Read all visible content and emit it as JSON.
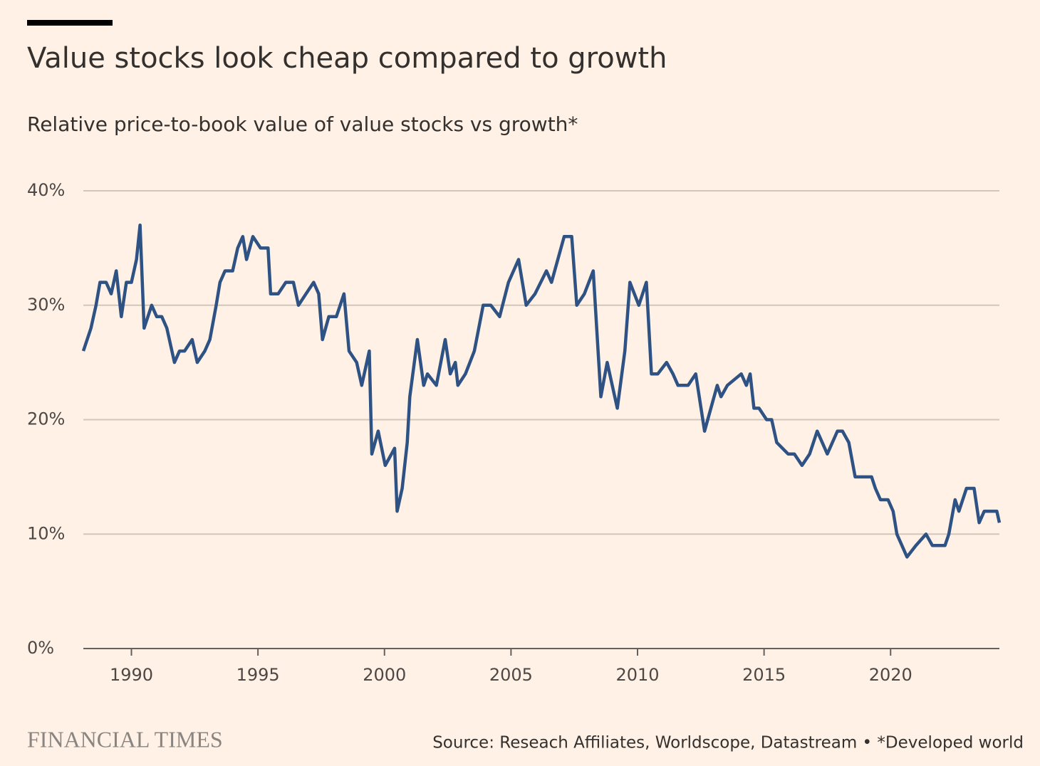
{
  "chart_data": {
    "type": "line",
    "title": "Value stocks look cheap compared to growth",
    "subtitle": "Relative price-to-book value of value stocks vs growth*",
    "source": "Source: Reseach Affiliates, Worldscope, Datastream • *Developed world",
    "logo": "FINANCIAL TIMES",
    "color": "#2e5283",
    "x": [
      1988.1,
      1988.4,
      1988.6,
      1988.76,
      1989.0,
      1989.2,
      1989.4,
      1989.6,
      1989.8,
      1990.0,
      1990.2,
      1990.34,
      1990.5,
      1990.8,
      1991.0,
      1991.2,
      1991.4,
      1991.7,
      1991.9,
      1992.1,
      1992.4,
      1992.6,
      1992.9,
      1993.1,
      1993.35,
      1993.5,
      1993.7,
      1994.0,
      1994.2,
      1994.4,
      1994.55,
      1994.8,
      1995.1,
      1995.4,
      1995.5,
      1995.8,
      1996.1,
      1996.4,
      1996.6,
      1996.9,
      1997.2,
      1997.4,
      1997.55,
      1997.8,
      1998.1,
      1998.4,
      1998.6,
      1998.9,
      1999.1,
      1999.4,
      1999.5,
      1999.75,
      2000.03,
      2000.4,
      2000.5,
      2000.7,
      2000.9,
      2001.0,
      2001.3,
      2001.55,
      2001.7,
      2002.05,
      2002.4,
      2002.6,
      2002.8,
      2002.9,
      2003.2,
      2003.55,
      2003.9,
      2004.2,
      2004.55,
      2004.9,
      2005.3,
      2005.6,
      2005.95,
      2006.4,
      2006.6,
      2006.85,
      2007.1,
      2007.4,
      2007.6,
      2007.9,
      2008.25,
      2008.55,
      2008.8,
      2009.0,
      2009.2,
      2009.5,
      2009.7,
      2010.05,
      2010.35,
      2010.55,
      2010.8,
      2011.15,
      2011.4,
      2011.6,
      2012.0,
      2012.3,
      2012.65,
      2012.9,
      2013.15,
      2013.3,
      2013.55,
      2014.1,
      2014.3,
      2014.45,
      2014.6,
      2014.8,
      2015.1,
      2015.3,
      2015.5,
      2015.95,
      2016.2,
      2016.5,
      2016.8,
      2017.1,
      2017.3,
      2017.5,
      2017.9,
      2018.1,
      2018.35,
      2018.6,
      2018.9,
      2019.25,
      2019.4,
      2019.6,
      2019.9,
      2020.1,
      2020.25,
      2020.45,
      2020.65,
      2021.0,
      2021.4,
      2021.65,
      2022.15,
      2022.3,
      2022.55,
      2022.7,
      2023.0,
      2023.3,
      2023.5,
      2023.7,
      2024.0,
      2024.2,
      2024.3
    ],
    "values": [
      26,
      28,
      30,
      32,
      32,
      31,
      33,
      29,
      32,
      32,
      34,
      37,
      28,
      30,
      29,
      29,
      28,
      25,
      26,
      26,
      27,
      25,
      26,
      27,
      30,
      32,
      33,
      33,
      35,
      36,
      34,
      36,
      35,
      35,
      31,
      31,
      32,
      32,
      30,
      31,
      32,
      31,
      27,
      29,
      29,
      31,
      26,
      25,
      23,
      26,
      17,
      19,
      16,
      17.5,
      12,
      14,
      18,
      22,
      27,
      23,
      24,
      23,
      27,
      24,
      25,
      23,
      24,
      26,
      30,
      30,
      29,
      32,
      34,
      30,
      31,
      33,
      32,
      34,
      36,
      36,
      30,
      31,
      33,
      22,
      25,
      23,
      21,
      26,
      32,
      30,
      32,
      24,
      24,
      25,
      24,
      23,
      23,
      24,
      19,
      21,
      23,
      22,
      23,
      24,
      23,
      24,
      21,
      21,
      20,
      20,
      18,
      17,
      17,
      16,
      17,
      19,
      18,
      17,
      19,
      19,
      18,
      15,
      15,
      15,
      14,
      13,
      13,
      12,
      10,
      9,
      8,
      9,
      10,
      9,
      9,
      10,
      13,
      12,
      14,
      14,
      11,
      12,
      12,
      12,
      11
    ],
    "xlim": [
      1988.1,
      2024.3
    ],
    "xticks": [
      1990,
      1995,
      2000,
      2005,
      2010,
      2015,
      2020
    ],
    "ylim": [
      0,
      40
    ],
    "yticks": [
      {
        "value": 0,
        "label": "0%"
      },
      {
        "value": 10,
        "label": "10%"
      },
      {
        "value": 20,
        "label": "20%"
      },
      {
        "value": 30,
        "label": "30%"
      },
      {
        "value": 40,
        "label": "40%"
      }
    ],
    "grid": true
  }
}
